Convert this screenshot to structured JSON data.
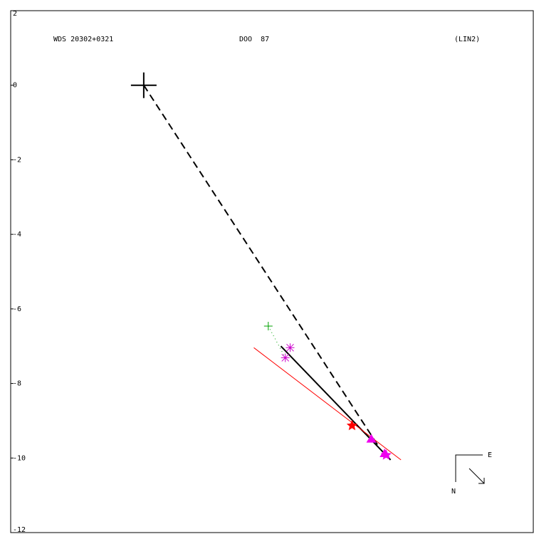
{
  "chart_data": {
    "type": "scatter",
    "title": "WDS 20302+0321",
    "subtitle": "DOO  87",
    "reference": "(LIN2)",
    "xlim": [
      -3.59,
      10.51
    ],
    "ylim": [
      -12,
      2
    ],
    "yticks": [
      2,
      0,
      -2,
      -4,
      -6,
      -8,
      -10,
      -12
    ],
    "compass": {
      "east": "E",
      "north": "N"
    },
    "lines": [
      {
        "style": "dashed",
        "color": "#000000",
        "width": 2,
        "x": [
          0,
          6.31
        ],
        "y": [
          0,
          -9.65
        ]
      },
      {
        "style": "solid",
        "color": "#000000",
        "width": 2,
        "x": [
          3.7,
          6.66
        ],
        "y": [
          -7.0,
          -10.05
        ]
      },
      {
        "style": "solid",
        "color": "#ff0000",
        "width": 1,
        "x": [
          2.97,
          6.94
        ],
        "y": [
          -7.04,
          -10.05
        ]
      },
      {
        "style": "dotted",
        "color": "#00a000",
        "width": 1,
        "x": [
          3.36,
          3.82
        ],
        "y": [
          -6.46,
          -7.31
        ]
      }
    ],
    "series": [
      {
        "marker": "bigplus",
        "color": "#000000",
        "x": [
          0
        ],
        "y": [
          0
        ]
      },
      {
        "marker": "plus",
        "color": "#00a000",
        "x": [
          3.36
        ],
        "y": [
          -6.46
        ]
      },
      {
        "marker": "asterisk",
        "color": "#cc00cc",
        "x": [
          3.95,
          3.82
        ],
        "y": [
          -7.04,
          -7.31
        ]
      },
      {
        "marker": "star",
        "color": "#ff0000",
        "x": [
          5.62
        ],
        "y": [
          -9.13
        ]
      },
      {
        "marker": "triangle",
        "color": "#ee00ee",
        "x": [
          6.14,
          6.5
        ],
        "y": [
          -9.49,
          -9.88
        ]
      },
      {
        "marker": "star",
        "color": "#ee00ee",
        "x": [
          6.54
        ],
        "y": [
          -9.92
        ]
      }
    ]
  }
}
